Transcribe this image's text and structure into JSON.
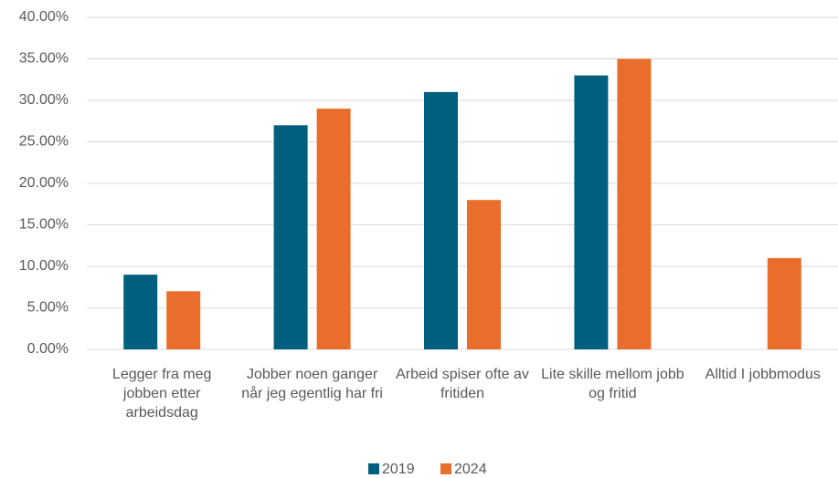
{
  "chart_data": {
    "type": "bar",
    "categories": [
      "Legger fra meg jobben etter arbeidsdag",
      "Jobber noen ganger når jeg egentlig har fri",
      "Arbeid spiser ofte av fritiden",
      "Lite skille mellom jobb og fritid",
      "Alltid I jobbmodus"
    ],
    "series": [
      {
        "name": "2019",
        "color": "#005f7f",
        "values": [
          9,
          27,
          31,
          33,
          null
        ]
      },
      {
        "name": "2024",
        "color": "#e96e2c",
        "values": [
          7,
          29,
          18,
          35,
          11
        ]
      }
    ],
    "ylim": [
      0,
      40
    ],
    "yticks": [
      {
        "value": 0,
        "label": "0.00%"
      },
      {
        "value": 5,
        "label": "5.00%"
      },
      {
        "value": 10,
        "label": "10.00%"
      },
      {
        "value": 15,
        "label": "15.00%"
      },
      {
        "value": 20,
        "label": "20.00%"
      },
      {
        "value": 25,
        "label": "25.00%"
      },
      {
        "value": 30,
        "label": "30.00%"
      },
      {
        "value": 35,
        "label": "35.00%"
      },
      {
        "value": 40,
        "label": "40.00%"
      }
    ],
    "grid": true,
    "legend": "bottom"
  }
}
